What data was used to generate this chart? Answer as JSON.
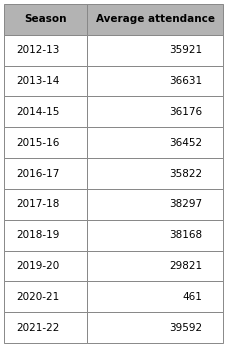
{
  "seasons": [
    "2012-13",
    "2013-14",
    "2014-15",
    "2015-16",
    "2016-17",
    "2017-18",
    "2018-19",
    "2019-20",
    "2020-21",
    "2021-22"
  ],
  "attendances": [
    "35921",
    "36631",
    "36176",
    "36452",
    "35822",
    "38297",
    "38168",
    "29821",
    "461",
    "39592"
  ],
  "col1_header": "Season",
  "col2_header": "Average attendance",
  "header_bg": "#b3b3b3",
  "row_bg": "#ffffff",
  "border_color": "#888888",
  "header_fontsize": 7.5,
  "cell_fontsize": 7.5,
  "header_font_weight": "bold",
  "fig_width": 2.27,
  "fig_height": 3.47
}
